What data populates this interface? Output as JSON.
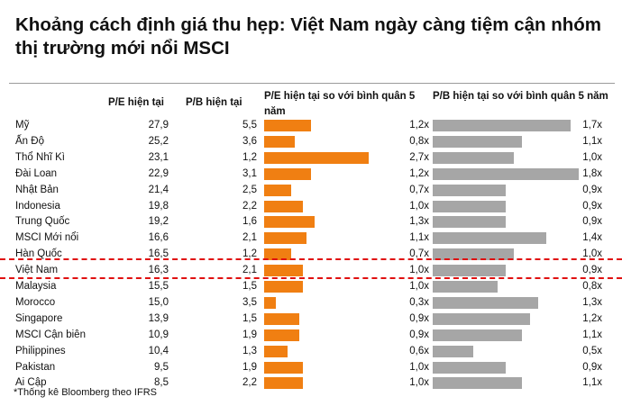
{
  "title": "Khoảng cách định giá thu hẹp: Việt Nam ngày càng tiệm cận nhóm thị trường mới nổi MSCI",
  "headers": {
    "pe": "P/E hiện tại",
    "pb": "P/B hiện tại",
    "pe_rel": "P/E hiện tại so với bình quân 5 năm",
    "pb_rel": "P/B hiện tại so với bình quân 5 năm"
  },
  "footnote": "*Thống kê Bloomberg theo IFRS",
  "colors": {
    "pe_bar": "#f07f12",
    "pb_bar": "#a6a6a6",
    "highlight": "#e01010"
  },
  "chart_data": {
    "type": "table",
    "rows": [
      {
        "country": "Mỹ",
        "pe": "27,9",
        "pb": "5,5",
        "pe_rel": 1.2,
        "pe_rel_label": "1,2x",
        "pb_rel": 1.7,
        "pb_rel_label": "1,7x"
      },
      {
        "country": "Ấn Độ",
        "pe": "25,2",
        "pb": "3,6",
        "pe_rel": 0.8,
        "pe_rel_label": "0,8x",
        "pb_rel": 1.1,
        "pb_rel_label": "1,1x"
      },
      {
        "country": "Thổ Nhĩ Kì",
        "pe": "23,1",
        "pb": "1,2",
        "pe_rel": 2.7,
        "pe_rel_label": "2,7x",
        "pb_rel": 1.0,
        "pb_rel_label": "1,0x"
      },
      {
        "country": "Đài Loan",
        "pe": "22,9",
        "pb": "3,1",
        "pe_rel": 1.2,
        "pe_rel_label": "1,2x",
        "pb_rel": 1.8,
        "pb_rel_label": "1,8x"
      },
      {
        "country": "Nhật Bản",
        "pe": "21,4",
        "pb": "2,5",
        "pe_rel": 0.7,
        "pe_rel_label": "0,7x",
        "pb_rel": 0.9,
        "pb_rel_label": "0,9x"
      },
      {
        "country": "Indonesia",
        "pe": "19,8",
        "pb": "2,2",
        "pe_rel": 1.0,
        "pe_rel_label": "1,0x",
        "pb_rel": 0.9,
        "pb_rel_label": "0,9x"
      },
      {
        "country": "Trung Quốc",
        "pe": "19,2",
        "pb": "1,6",
        "pe_rel": 1.3,
        "pe_rel_label": "1,3x",
        "pb_rel": 0.9,
        "pb_rel_label": "0,9x"
      },
      {
        "country": "MSCI Mới nổi",
        "pe": "16,6",
        "pb": "2,1",
        "pe_rel": 1.1,
        "pe_rel_label": "1,1x",
        "pb_rel": 1.4,
        "pb_rel_label": "1,4x"
      },
      {
        "country": "Hàn Quốc",
        "pe": "16,5",
        "pb": "1,2",
        "pe_rel": 0.7,
        "pe_rel_label": "0,7x",
        "pb_rel": 1.0,
        "pb_rel_label": "1,0x"
      },
      {
        "country": "Việt Nam",
        "pe": "16,3",
        "pb": "2,1",
        "pe_rel": 1.0,
        "pe_rel_label": "1,0x",
        "pb_rel": 0.9,
        "pb_rel_label": "0,9x",
        "highlight": true
      },
      {
        "country": "Malaysia",
        "pe": "15,5",
        "pb": "1,5",
        "pe_rel": 1.0,
        "pe_rel_label": "1,0x",
        "pb_rel": 0.8,
        "pb_rel_label": "0,8x"
      },
      {
        "country": "Morocco",
        "pe": "15,0",
        "pb": "3,5",
        "pe_rel": 0.3,
        "pe_rel_label": "0,3x",
        "pb_rel": 1.3,
        "pb_rel_label": "1,3x"
      },
      {
        "country": "Singapore",
        "pe": "13,9",
        "pb": "1,5",
        "pe_rel": 0.9,
        "pe_rel_label": "0,9x",
        "pb_rel": 1.2,
        "pb_rel_label": "1,2x"
      },
      {
        "country": "MSCI Cận biên",
        "pe": "10,9",
        "pb": "1,9",
        "pe_rel": 0.9,
        "pe_rel_label": "0,9x",
        "pb_rel": 1.1,
        "pb_rel_label": "1,1x"
      },
      {
        "country": "Philippines",
        "pe": "10,4",
        "pb": "1,3",
        "pe_rel": 0.6,
        "pe_rel_label": "0,6x",
        "pb_rel": 0.5,
        "pb_rel_label": "0,5x"
      },
      {
        "country": "Pakistan",
        "pe": "9,5",
        "pb": "1,9",
        "pe_rel": 1.0,
        "pe_rel_label": "1,0x",
        "pb_rel": 0.9,
        "pb_rel_label": "0,9x"
      },
      {
        "country": "Ai Cập",
        "pe": "8,5",
        "pb": "2,2",
        "pe_rel": 1.0,
        "pe_rel_label": "1,0x",
        "pb_rel": 1.1,
        "pb_rel_label": "1,1x"
      }
    ]
  }
}
